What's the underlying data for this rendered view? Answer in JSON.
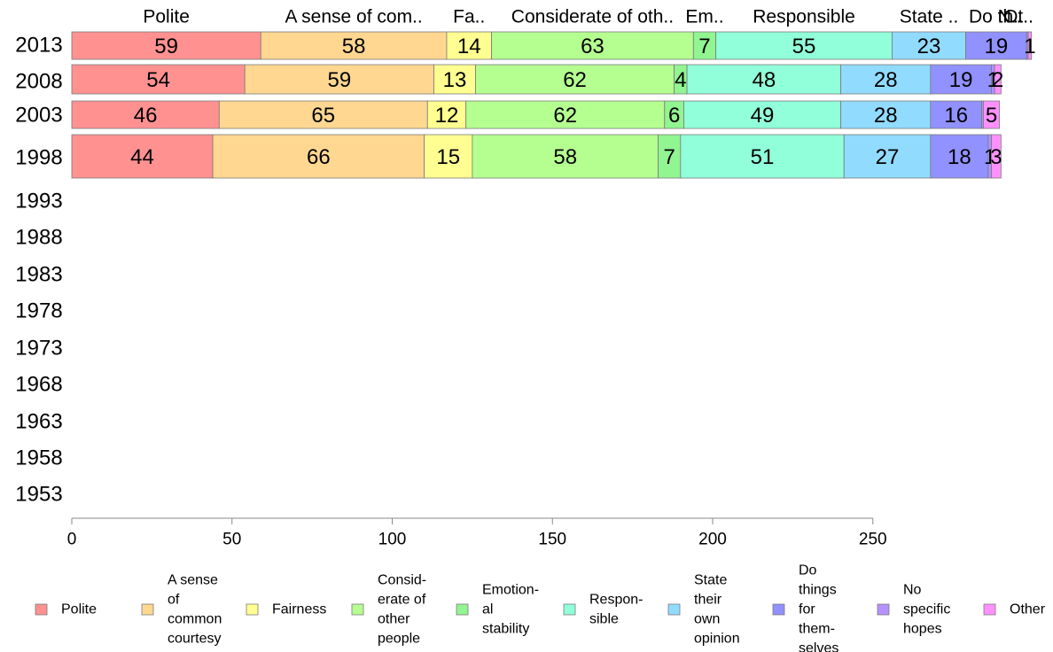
{
  "chart_data": {
    "type": "bar",
    "orientation": "horizontal",
    "stacked": true,
    "title": "",
    "xlabel": "",
    "ylabel": "",
    "xlim": [
      0,
      300
    ],
    "x_ticks": [
      "0",
      "50",
      "100",
      "150",
      "200",
      "250"
    ],
    "grid": false,
    "legend_position": "bottom",
    "categories": [
      "2013",
      "2008",
      "2003",
      "1998",
      "1993",
      "1988",
      "1983",
      "1978",
      "1973",
      "1968",
      "1963",
      "1958",
      "1953"
    ],
    "header_labels": [
      "Polite",
      "A sense of com..",
      "Fa..",
      "Considerate of oth..",
      "Em..",
      "Responsible",
      "State ..",
      "Do th..",
      "N..",
      "Ot.."
    ],
    "series": [
      {
        "name": "Polite",
        "legend": [
          "Polite"
        ],
        "color": "#ff9191",
        "values": [
          59,
          54,
          46,
          44,
          null,
          null,
          null,
          null,
          null,
          null,
          null,
          null,
          null
        ]
      },
      {
        "name": "A sense of common courtesy",
        "legend": [
          "A sense",
          "of",
          "common",
          "courtesy"
        ],
        "color": "#ffd791",
        "values": [
          58,
          59,
          65,
          66,
          null,
          null,
          null,
          null,
          null,
          null,
          null,
          null,
          null
        ]
      },
      {
        "name": "Fairness",
        "legend": [
          "Fairness"
        ],
        "color": "#ffff91",
        "values": [
          14,
          13,
          12,
          15,
          null,
          null,
          null,
          null,
          null,
          null,
          null,
          null,
          null
        ]
      },
      {
        "name": "Considerate of other people",
        "legend": [
          "Consid-",
          "erate of",
          "other",
          "people"
        ],
        "color": "#b5ff91",
        "values": [
          63,
          62,
          62,
          58,
          null,
          null,
          null,
          null,
          null,
          null,
          null,
          null,
          null
        ]
      },
      {
        "name": "Emotional stability",
        "legend": [
          "Emotion-",
          "al",
          "stability"
        ],
        "color": "#91f591",
        "values": [
          7,
          4,
          6,
          7,
          null,
          null,
          null,
          null,
          null,
          null,
          null,
          null,
          null
        ]
      },
      {
        "name": "Responsible",
        "legend": [
          "Respon-",
          "sible"
        ],
        "color": "#91ffda",
        "values": [
          55,
          48,
          49,
          51,
          null,
          null,
          null,
          null,
          null,
          null,
          null,
          null,
          null
        ]
      },
      {
        "name": "State their own opinion",
        "legend": [
          "State",
          "their",
          "own",
          "opinion"
        ],
        "color": "#91dbff",
        "values": [
          23,
          28,
          28,
          27,
          null,
          null,
          null,
          null,
          null,
          null,
          null,
          null,
          null
        ]
      },
      {
        "name": "Do things for themselves",
        "legend": [
          "Do",
          "things",
          "for",
          "them-",
          "selves"
        ],
        "color": "#9191ff",
        "values": [
          19,
          19,
          16,
          18,
          null,
          null,
          null,
          null,
          null,
          null,
          null,
          null,
          null
        ]
      },
      {
        "name": "No specific hopes",
        "legend": [
          "No",
          "specific",
          "hopes"
        ],
        "color": "#b591ff",
        "values": [
          0.5,
          1,
          0.5,
          1,
          null,
          null,
          null,
          null,
          null,
          null,
          null,
          null,
          null
        ]
      },
      {
        "name": "Other",
        "legend": [
          "Other"
        ],
        "color": "#ff91ff",
        "values": [
          1,
          2,
          5,
          3,
          null,
          null,
          null,
          null,
          null,
          null,
          null,
          null,
          null
        ]
      }
    ],
    "segment_labels": [
      [
        "59",
        "58",
        "14",
        "63",
        "7",
        "55",
        "23",
        "19",
        "",
        "1"
      ],
      [
        "54",
        "59",
        "13",
        "62",
        "4",
        "48",
        "28",
        "19",
        "1",
        "2"
      ],
      [
        "46",
        "65",
        "12",
        "62",
        "6",
        "49",
        "28",
        "16",
        "",
        "5"
      ],
      [
        "44",
        "66",
        "15",
        "58",
        "7",
        "51",
        "27",
        "18",
        "1",
        "3"
      ]
    ]
  }
}
